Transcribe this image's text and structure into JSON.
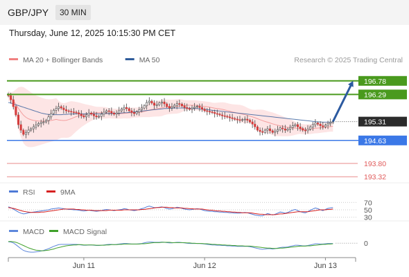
{
  "header": {
    "pair": "GBP/JPY",
    "timeframe": "30 MIN",
    "datetime": "Thursday, June 12, 2025 10:15:30 PM CET"
  },
  "colors": {
    "bollinger": "#f08080",
    "bollinger_fill": "#fde1e1",
    "ma50": "#2f5b9a",
    "resistance": "#4a9a1e",
    "support": "#3b78e7",
    "target": "#e05a5a",
    "arrow": "#2c5aa0",
    "rsi": "#4e79d6",
    "rsi_ma": "#d62020",
    "macd": "#5d87db",
    "macd_signal": "#3fa02a",
    "up_candle": "#ffffff",
    "down_candle": "#d43c3c",
    "wick": "#444444"
  },
  "chart_data": [
    {
      "type": "candlestick",
      "legend": [
        {
          "label": "MA 20 + Bollinger Bands",
          "color": "#f08080"
        },
        {
          "label": "MA 50",
          "color": "#2f5b9a"
        }
      ],
      "legend_position": "top-left",
      "credit": "Research © 2025 Trading Central",
      "ylim": [
        193.0,
        197.3
      ],
      "grid": false,
      "x_ticks": [
        {
          "label": "Jun 11",
          "index": 30
        },
        {
          "label": "Jun 12",
          "index": 78
        },
        {
          "label": "Jun 13",
          "index": 126
        }
      ],
      "last_price": 195.31,
      "projection": {
        "from_index": 129,
        "from_value": 195.31,
        "to_index": 137,
        "to_value": 196.78
      },
      "levels": [
        {
          "value": 196.78,
          "label": "196.78",
          "kind": "resistance"
        },
        {
          "value": 196.29,
          "label": "196.29",
          "kind": "resistance"
        },
        {
          "value": 195.31,
          "label": "195.31",
          "kind": "last"
        },
        {
          "value": 194.63,
          "label": "194.63",
          "kind": "support"
        },
        {
          "value": 193.8,
          "label": "193.80",
          "kind": "target"
        },
        {
          "value": 193.32,
          "label": "193.32",
          "kind": "target"
        }
      ],
      "close": [
        196.25,
        196.1,
        195.85,
        195.55,
        195.2,
        195.0,
        194.85,
        194.92,
        195.0,
        195.05,
        195.12,
        195.18,
        195.24,
        195.28,
        195.3,
        195.35,
        195.48,
        195.6,
        195.72,
        195.78,
        195.85,
        195.8,
        195.74,
        195.7,
        195.68,
        195.66,
        195.65,
        195.63,
        195.58,
        195.52,
        195.48,
        195.55,
        195.62,
        195.58,
        195.52,
        195.48,
        195.5,
        195.58,
        195.65,
        195.7,
        195.68,
        195.62,
        195.58,
        195.62,
        195.7,
        195.76,
        195.82,
        195.78,
        195.7,
        195.64,
        195.6,
        195.66,
        195.74,
        195.8,
        195.88,
        196.0,
        196.05,
        195.98,
        195.9,
        195.92,
        195.98,
        196.02,
        195.95,
        195.86,
        195.8,
        195.84,
        195.9,
        195.96,
        195.94,
        195.88,
        195.82,
        195.78,
        195.76,
        195.8,
        195.84,
        195.86,
        195.82,
        195.76,
        195.7,
        195.68,
        195.66,
        195.64,
        195.6,
        195.58,
        195.55,
        195.52,
        195.5,
        195.48,
        195.45,
        195.42,
        195.4,
        195.38,
        195.36,
        195.38,
        195.4,
        195.36,
        195.3,
        195.22,
        195.12,
        195.0,
        194.95,
        194.92,
        195.0,
        195.05,
        194.98,
        194.92,
        194.96,
        195.02,
        195.08,
        195.05,
        195.0,
        195.04,
        195.1,
        195.16,
        195.2,
        195.12,
        195.06,
        195.0,
        194.98,
        195.04,
        195.12,
        195.2,
        195.26,
        195.22,
        195.16,
        195.12,
        195.18,
        195.24,
        195.28,
        195.31
      ],
      "ma50": [
        196.0,
        195.98,
        195.95,
        195.92,
        195.89,
        195.86,
        195.83,
        195.8,
        195.77,
        195.74,
        195.71,
        195.68,
        195.65,
        195.62,
        195.6,
        195.58,
        195.57,
        195.56,
        195.56,
        195.56,
        195.56,
        195.56,
        195.57,
        195.57,
        195.58,
        195.58,
        195.59,
        195.59,
        195.59,
        195.59,
        195.59,
        195.59,
        195.59,
        195.59,
        195.59,
        195.59,
        195.59,
        195.59,
        195.6,
        195.6,
        195.6,
        195.6,
        195.6,
        195.61,
        195.61,
        195.62,
        195.63,
        195.63,
        195.64,
        195.65,
        195.66,
        195.67,
        195.68,
        195.69,
        195.7,
        195.71,
        195.72,
        195.73,
        195.74,
        195.75,
        195.76,
        195.77,
        195.78,
        195.78,
        195.79,
        195.79,
        195.8,
        195.8,
        195.8,
        195.8,
        195.8,
        195.8,
        195.79,
        195.79,
        195.78,
        195.78,
        195.77,
        195.76,
        195.75,
        195.74,
        195.73,
        195.72,
        195.71,
        195.7,
        195.69,
        195.68,
        195.67,
        195.66,
        195.65,
        195.64,
        195.63,
        195.62,
        195.61,
        195.6,
        195.59,
        195.58,
        195.57,
        195.56,
        195.55,
        195.54,
        195.53,
        195.52,
        195.51,
        195.5,
        195.49,
        195.48,
        195.47,
        195.46,
        195.45,
        195.44,
        195.43,
        195.42,
        195.41,
        195.4,
        195.39,
        195.38,
        195.37,
        195.36,
        195.35,
        195.34,
        195.33,
        195.32,
        195.31,
        195.3,
        195.3,
        195.29,
        195.29,
        195.29,
        195.29,
        195.29
      ]
    },
    {
      "type": "line",
      "legend": [
        {
          "label": "RSI",
          "color": "#4e79d6"
        },
        {
          "label": "9MA",
          "color": "#d62020"
        }
      ],
      "legend_position": "top-left",
      "ylim": [
        22,
        78
      ],
      "levels": [
        {
          "value": 70,
          "label": "70"
        },
        {
          "value": 50,
          "label": "50"
        },
        {
          "value": 30,
          "label": "30"
        }
      ],
      "series": [
        {
          "name": "RSI",
          "values": [
            58,
            56,
            52,
            48,
            44,
            41,
            39,
            40,
            42,
            43,
            44,
            45,
            46,
            47,
            48,
            49,
            50,
            52,
            53,
            54,
            55,
            54,
            53,
            52,
            51,
            51,
            50,
            50,
            49,
            48,
            47,
            48,
            49,
            48,
            47,
            46,
            47,
            48,
            50,
            51,
            50,
            49,
            48,
            49,
            50,
            51,
            53,
            52,
            50,
            49,
            48,
            49,
            51,
            53,
            55,
            58,
            60,
            58,
            56,
            56,
            57,
            58,
            56,
            54,
            52,
            53,
            55,
            57,
            56,
            54,
            52,
            51,
            50,
            51,
            52,
            53,
            52,
            50,
            48,
            47,
            46,
            46,
            45,
            45,
            44,
            44,
            43,
            43,
            42,
            42,
            41,
            41,
            41,
            42,
            43,
            42,
            40,
            38,
            36,
            35,
            34,
            34,
            37,
            40,
            38,
            36,
            38,
            41,
            44,
            43,
            41,
            43,
            46,
            49,
            51,
            48,
            45,
            43,
            42,
            45,
            49,
            52,
            55,
            53,
            50,
            48,
            51,
            54,
            55,
            56
          ]
        },
        {
          "name": "9MA",
          "values": [
            56,
            55,
            54,
            52,
            50,
            48,
            46,
            45,
            44,
            43,
            43,
            43,
            43,
            44,
            44,
            45,
            46,
            47,
            48,
            49,
            50,
            51,
            52,
            52,
            52,
            52,
            52,
            51,
            51,
            50,
            50,
            49,
            49,
            49,
            48,
            48,
            48,
            48,
            48,
            48,
            49,
            49,
            49,
            49,
            49,
            49,
            50,
            50,
            50,
            50,
            50,
            50,
            50,
            51,
            51,
            52,
            53,
            54,
            55,
            56,
            56,
            57,
            57,
            57,
            56,
            56,
            55,
            55,
            55,
            55,
            54,
            54,
            53,
            53,
            52,
            52,
            52,
            52,
            51,
            50,
            49,
            49,
            48,
            47,
            47,
            46,
            46,
            45,
            45,
            44,
            44,
            43,
            43,
            42,
            42,
            42,
            42,
            41,
            40,
            39,
            38,
            38,
            37,
            37,
            37,
            37,
            37,
            38,
            39,
            39,
            40,
            41,
            42,
            43,
            44,
            45,
            45,
            45,
            45,
            45,
            46,
            47,
            48,
            49,
            50,
            50,
            50,
            51,
            51,
            52
          ]
        }
      ]
    },
    {
      "type": "line",
      "legend": [
        {
          "label": "MACD",
          "color": "#5d87db"
        },
        {
          "label": "MACD Signal",
          "color": "#3fa02a"
        }
      ],
      "legend_position": "top-left",
      "ylim": [
        -0.45,
        0.22
      ],
      "levels": [
        {
          "value": 0,
          "label": "0"
        }
      ],
      "series": [
        {
          "name": "MACD",
          "values": [
            0.05,
            0.04,
            0.01,
            -0.05,
            -0.12,
            -0.19,
            -0.25,
            -0.28,
            -0.3,
            -0.31,
            -0.31,
            -0.3,
            -0.29,
            -0.27,
            -0.25,
            -0.22,
            -0.19,
            -0.15,
            -0.11,
            -0.08,
            -0.05,
            -0.04,
            -0.04,
            -0.04,
            -0.04,
            -0.04,
            -0.04,
            -0.04,
            -0.05,
            -0.06,
            -0.07,
            -0.07,
            -0.06,
            -0.06,
            -0.07,
            -0.08,
            -0.08,
            -0.07,
            -0.06,
            -0.05,
            -0.04,
            -0.04,
            -0.05,
            -0.04,
            -0.03,
            -0.02,
            -0.01,
            -0.01,
            -0.02,
            -0.03,
            -0.03,
            -0.03,
            -0.02,
            -0.01,
            0.01,
            0.03,
            0.04,
            0.04,
            0.03,
            0.03,
            0.03,
            0.04,
            0.03,
            0.02,
            0.01,
            0.01,
            0.02,
            0.03,
            0.03,
            0.02,
            0.01,
            0.0,
            -0.01,
            -0.01,
            -0.01,
            -0.01,
            -0.01,
            -0.02,
            -0.03,
            -0.04,
            -0.05,
            -0.06,
            -0.06,
            -0.07,
            -0.07,
            -0.08,
            -0.08,
            -0.09,
            -0.09,
            -0.1,
            -0.1,
            -0.11,
            -0.11,
            -0.11,
            -0.11,
            -0.11,
            -0.12,
            -0.14,
            -0.16,
            -0.18,
            -0.2,
            -0.21,
            -0.2,
            -0.19,
            -0.19,
            -0.2,
            -0.19,
            -0.17,
            -0.15,
            -0.14,
            -0.14,
            -0.13,
            -0.11,
            -0.09,
            -0.07,
            -0.07,
            -0.08,
            -0.09,
            -0.09,
            -0.08,
            -0.06,
            -0.04,
            -0.02,
            -0.02,
            -0.03,
            -0.03,
            -0.02,
            -0.01,
            -0.01,
            -0.01
          ]
        },
        {
          "name": "MACD Signal",
          "values": [
            0.06,
            0.06,
            0.05,
            0.03,
            0.0,
            -0.04,
            -0.08,
            -0.12,
            -0.16,
            -0.19,
            -0.22,
            -0.24,
            -0.25,
            -0.26,
            -0.26,
            -0.25,
            -0.24,
            -0.22,
            -0.2,
            -0.17,
            -0.15,
            -0.13,
            -0.11,
            -0.09,
            -0.08,
            -0.07,
            -0.06,
            -0.06,
            -0.05,
            -0.05,
            -0.06,
            -0.06,
            -0.06,
            -0.06,
            -0.06,
            -0.07,
            -0.07,
            -0.07,
            -0.07,
            -0.06,
            -0.06,
            -0.05,
            -0.05,
            -0.05,
            -0.04,
            -0.04,
            -0.03,
            -0.03,
            -0.03,
            -0.03,
            -0.03,
            -0.03,
            -0.03,
            -0.02,
            -0.02,
            -0.01,
            0.0,
            0.01,
            0.02,
            0.02,
            0.02,
            0.03,
            0.03,
            0.03,
            0.03,
            0.02,
            0.02,
            0.02,
            0.02,
            0.02,
            0.02,
            0.01,
            0.01,
            0.0,
            0.0,
            -0.01,
            -0.01,
            -0.01,
            -0.02,
            -0.02,
            -0.03,
            -0.04,
            -0.04,
            -0.05,
            -0.05,
            -0.06,
            -0.06,
            -0.07,
            -0.07,
            -0.08,
            -0.08,
            -0.09,
            -0.09,
            -0.09,
            -0.1,
            -0.1,
            -0.1,
            -0.11,
            -0.12,
            -0.13,
            -0.14,
            -0.15,
            -0.16,
            -0.17,
            -0.17,
            -0.18,
            -0.18,
            -0.18,
            -0.17,
            -0.17,
            -0.16,
            -0.15,
            -0.14,
            -0.13,
            -0.12,
            -0.11,
            -0.1,
            -0.1,
            -0.1,
            -0.09,
            -0.09,
            -0.08,
            -0.07,
            -0.06,
            -0.05,
            -0.04,
            -0.04,
            -0.03,
            -0.03,
            -0.02
          ]
        }
      ]
    }
  ]
}
